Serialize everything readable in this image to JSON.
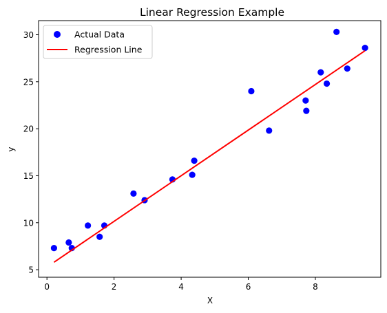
{
  "chart_data": {
    "type": "scatter",
    "title": "Linear Regression Example",
    "xlabel": "X",
    "ylabel": "y",
    "xlim": [
      -0.25,
      9.95
    ],
    "ylim": [
      4.2,
      31.5
    ],
    "xticks": [
      0,
      2,
      4,
      6,
      8
    ],
    "yticks": [
      5,
      10,
      15,
      20,
      25,
      30
    ],
    "grid": false,
    "legend_position": "top-left",
    "series": [
      {
        "name": "Actual Data",
        "kind": "scatter",
        "color": "#0000ff",
        "x": [
          0.21,
          0.65,
          0.74,
          1.22,
          1.57,
          1.71,
          2.58,
          2.91,
          3.74,
          4.33,
          4.39,
          6.09,
          6.62,
          7.71,
          7.73,
          8.16,
          8.34,
          8.63,
          8.95,
          9.48
        ],
        "y": [
          7.3,
          7.9,
          7.3,
          9.7,
          8.5,
          9.7,
          13.1,
          12.4,
          14.6,
          15.1,
          16.6,
          24.0,
          19.8,
          23.0,
          21.9,
          26.0,
          24.8,
          30.3,
          26.4,
          28.6
        ]
      },
      {
        "name": "Regression Line",
        "kind": "line",
        "color": "#ff0000",
        "x": [
          0.21,
          9.48
        ],
        "y": [
          5.8,
          28.3
        ]
      }
    ]
  }
}
